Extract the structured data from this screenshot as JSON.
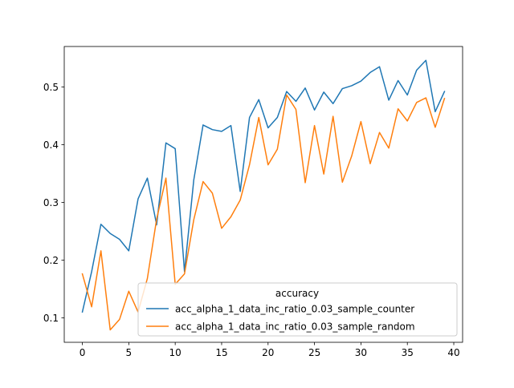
{
  "chart_data": {
    "type": "line",
    "title": "",
    "xlabel": "",
    "ylabel": "",
    "xlim": [
      -1.95,
      40.95
    ],
    "ylim": [
      0.0575,
      0.57
    ],
    "xticks": [
      0,
      5,
      10,
      15,
      20,
      25,
      30,
      35,
      40
    ],
    "yticks": [
      0.1,
      0.2,
      0.3,
      0.4,
      0.5
    ],
    "grid": false,
    "legend": {
      "title": "accuracy",
      "placement": "lower right"
    },
    "x": [
      0,
      1,
      2,
      3,
      4,
      5,
      6,
      7,
      8,
      9,
      10,
      11,
      12,
      13,
      14,
      15,
      16,
      17,
      18,
      19,
      20,
      21,
      22,
      23,
      24,
      25,
      26,
      27,
      28,
      29,
      30,
      31,
      32,
      33,
      34,
      35,
      36,
      37,
      38,
      39
    ],
    "series": [
      {
        "name": "acc_alpha_1_data_inc_ratio_0.03_sample_counter",
        "color": "#1f77b4",
        "values": [
          0.11,
          0.18,
          0.262,
          0.246,
          0.236,
          0.216,
          0.306,
          0.342,
          0.261,
          0.403,
          0.393,
          0.18,
          0.339,
          0.434,
          0.426,
          0.423,
          0.433,
          0.319,
          0.447,
          0.478,
          0.429,
          0.447,
          0.492,
          0.475,
          0.498,
          0.46,
          0.491,
          0.471,
          0.497,
          0.502,
          0.51,
          0.525,
          0.535,
          0.477,
          0.511,
          0.486,
          0.529,
          0.546,
          0.457,
          0.492
        ]
      },
      {
        "name": "acc_alpha_1_data_inc_ratio_0.03_sample_random",
        "color": "#ff7f0e",
        "values": [
          0.176,
          0.119,
          0.216,
          0.079,
          0.097,
          0.146,
          0.11,
          0.168,
          0.271,
          0.342,
          0.158,
          0.176,
          0.27,
          0.336,
          0.316,
          0.255,
          0.275,
          0.304,
          0.365,
          0.447,
          0.365,
          0.392,
          0.486,
          0.461,
          0.334,
          0.433,
          0.349,
          0.449,
          0.335,
          0.38,
          0.44,
          0.367,
          0.421,
          0.394,
          0.462,
          0.441,
          0.473,
          0.481,
          0.43,
          0.48
        ]
      }
    ]
  }
}
